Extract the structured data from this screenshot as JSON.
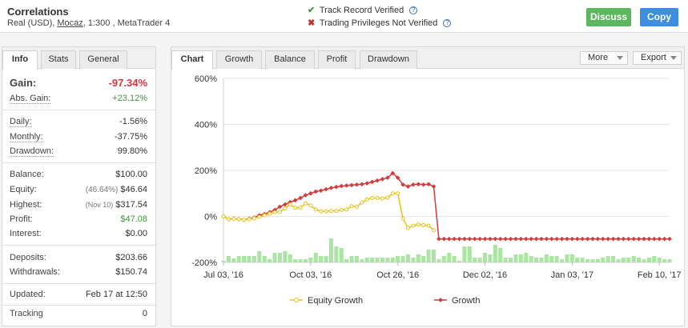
{
  "header": {
    "title": "Correlations",
    "account_type": "Real (USD),",
    "broker": "Mocaz",
    "details": ", 1:300 , MetaTrader 4",
    "track_record": "Track Record Verified",
    "trading_privileges": "Trading Privileges Not Verified",
    "discuss_label": "Discuss",
    "copy_label": "Copy",
    "colors": {
      "discuss": "#5cb85c",
      "copy": "#3d8de0",
      "verified": "#3c9a3c",
      "not_verified": "#c9302c"
    }
  },
  "info": {
    "tabs": [
      "Info",
      "Stats",
      "General"
    ],
    "gain_label": "Gain:",
    "gain_value": "-97.34%",
    "abs_gain_label": "Abs. Gain:",
    "abs_gain_value": "+23.12%",
    "daily_label": "Daily:",
    "daily_value": "-1.56%",
    "monthly_label": "Monthly:",
    "monthly_value": "-37.75%",
    "drawdown_label": "Drawdown:",
    "drawdown_value": "99.80%",
    "balance_label": "Balance:",
    "balance_value": "$100.00",
    "equity_label": "Equity:",
    "equity_pct": "(46.64%)",
    "equity_value": "$46.64",
    "highest_label": "Highest:",
    "highest_date": "(Nov 10)",
    "highest_value": "$317.54",
    "profit_label": "Profit:",
    "profit_value": "$47.08",
    "interest_label": "Interest:",
    "interest_value": "$0.00",
    "deposits_label": "Deposits:",
    "deposits_value": "$203.66",
    "withdrawals_label": "Withdrawals:",
    "withdrawals_value": "$150.74",
    "updated_label": "Updated:",
    "updated_value": "Feb 17 at 12:50",
    "tracking_label": "Tracking",
    "tracking_value": "0"
  },
  "chart_panel": {
    "tabs": [
      "Chart",
      "Growth",
      "Balance",
      "Profit",
      "Drawdown"
    ],
    "more_label": "More",
    "export_label": "Export"
  },
  "chart_data": {
    "type": "line",
    "ylim": [
      -200,
      600
    ],
    "yticks": [
      "600%",
      "400%",
      "200%",
      "0%",
      "-200%"
    ],
    "ytick_values": [
      600,
      400,
      200,
      0,
      -200
    ],
    "xticks": [
      "Jul 03, '16",
      "Oct 03, '16",
      "Oct 26, '16",
      "Dec 02, '16",
      "Jan 03, '17",
      "Feb 10, '17"
    ],
    "xtick_positions": [
      0,
      17,
      34,
      51,
      68,
      85
    ],
    "n_points": 88,
    "series": [
      {
        "name": "Growth",
        "color": "#d63a3a",
        "values": [
          0,
          -12,
          -10,
          -12,
          -15,
          -10,
          -5,
          5,
          10,
          18,
          28,
          42,
          52,
          62,
          70,
          80,
          92,
          100,
          108,
          112,
          118,
          124,
          128,
          132,
          134,
          136,
          138,
          140,
          144,
          150,
          156,
          162,
          168,
          188,
          168,
          138,
          130,
          138,
          140,
          138,
          140,
          130,
          -98,
          -98,
          -98,
          -98,
          -98,
          -98,
          -98,
          -98,
          -98,
          -98,
          -98,
          -98,
          -98,
          -98,
          -98,
          -98,
          -98,
          -98,
          -98,
          -98,
          -98,
          -98,
          -98,
          -98,
          -98,
          -98,
          -98,
          -98,
          -98,
          -98,
          -98,
          -98,
          -98,
          -98,
          -98,
          -98,
          -98,
          -98,
          -98,
          -98,
          -98,
          -98,
          -98,
          -98,
          -98,
          -98
        ]
      },
      {
        "name": "Equity Growth",
        "color": "#e8c21a",
        "values": [
          0,
          -12,
          -10,
          -12,
          -15,
          -12,
          -8,
          -2,
          5,
          12,
          18,
          20,
          35,
          52,
          38,
          38,
          56,
          48,
          30,
          22,
          22,
          24,
          24,
          28,
          30,
          45,
          42,
          60,
          74,
          80,
          80,
          78,
          82,
          100,
          100,
          -10,
          -50,
          -40,
          -35,
          -38,
          -40,
          -60,
          null,
          null,
          null,
          null,
          null,
          null,
          null,
          null,
          null,
          null,
          null,
          null,
          null,
          null,
          null,
          null,
          null,
          null,
          null,
          null,
          null,
          null,
          null,
          null,
          null,
          null,
          null,
          null,
          null,
          null,
          null,
          null,
          null,
          null,
          null,
          null,
          null,
          null,
          null,
          null,
          null,
          null,
          null,
          null,
          null,
          null
        ]
      }
    ],
    "bars": [
      2,
      8,
      5,
      8,
      8,
      8,
      8,
      14,
      8,
      4,
      12,
      12,
      14,
      10,
      4,
      4,
      4,
      6,
      12,
      8,
      8,
      30,
      20,
      18,
      4,
      8,
      8,
      4,
      6,
      6,
      6,
      6,
      6,
      6,
      8,
      8,
      10,
      6,
      10,
      8,
      16,
      16,
      4,
      8,
      12,
      8,
      2,
      20,
      20,
      6,
      6,
      12,
      10,
      22,
      18,
      6,
      6,
      10,
      10,
      12,
      8,
      6,
      6,
      10,
      8,
      8,
      4,
      10,
      10,
      6,
      6,
      4,
      4,
      4,
      6,
      8,
      8,
      4,
      6,
      6,
      8,
      6,
      4,
      6,
      8,
      6,
      4,
      4
    ],
    "bar_color": "#a8e6a1",
    "legend": [
      "Equity Growth",
      "Growth"
    ]
  }
}
